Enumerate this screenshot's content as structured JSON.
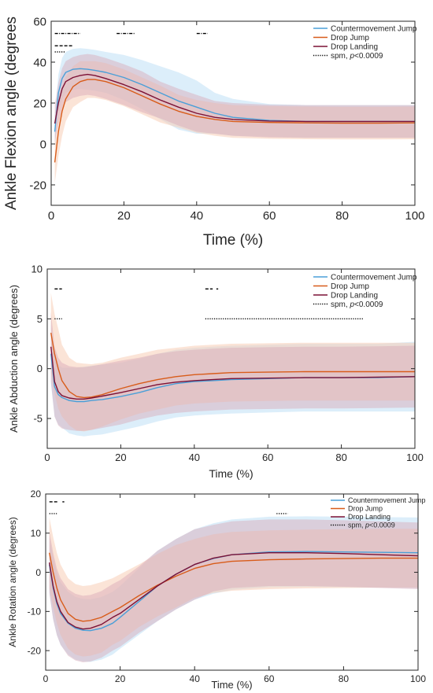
{
  "colors": {
    "cmj": "#4a9fd8",
    "dj": "#d85c1a",
    "dl": "#7c1135",
    "cmj_band": "#bfe0f5",
    "dj_band": "#f7cdb7",
    "dl_band": "#d8a6b6",
    "spm": "#000000"
  },
  "chart_data": [
    {
      "type": "line",
      "xlabel": "Time (%)",
      "ylabel": "Ankle Flexion angle (degrees",
      "xlim": [
        0,
        100
      ],
      "ylim": [
        -30,
        60
      ],
      "xticks": [
        0,
        20,
        40,
        60,
        80,
        100
      ],
      "yticks": [
        -20,
        0,
        20,
        40,
        60
      ],
      "legend_position": "top-right",
      "legend": [
        "Countermovement Jump",
        "Drop Jump",
        "Drop Landing",
        "spm, p<0.0009"
      ],
      "series": [
        {
          "name": "Countermovement Jump",
          "key": "cmj",
          "x": [
            1,
            2,
            3,
            4,
            6,
            8,
            10,
            12,
            15,
            20,
            25,
            30,
            35,
            40,
            45,
            50,
            60,
            70,
            80,
            90,
            100
          ],
          "y": [
            6,
            25,
            32,
            35,
            36.5,
            36.8,
            36.5,
            36,
            35,
            32.5,
            29,
            25,
            21,
            18,
            15,
            13,
            11.5,
            11,
            11,
            11,
            11
          ],
          "sd": [
            8,
            9,
            10,
            10,
            10,
            10,
            10,
            10,
            10,
            11,
            12,
            13,
            14,
            13,
            10,
            9,
            8,
            8,
            8,
            8,
            8
          ]
        },
        {
          "name": "Drop Jump",
          "key": "dj",
          "x": [
            1,
            2,
            3,
            4,
            6,
            8,
            10,
            12,
            15,
            20,
            25,
            30,
            35,
            40,
            45,
            50,
            60,
            70,
            80,
            90,
            100
          ],
          "y": [
            -9,
            6,
            16,
            22,
            28,
            30.5,
            31.5,
            31.5,
            30.5,
            27.5,
            23.5,
            19.5,
            16,
            13.5,
            12,
            11,
            10.5,
            10.3,
            10.2,
            10.2,
            10.3
          ],
          "sd": [
            10,
            12,
            12,
            11,
            10,
            10,
            9,
            9,
            9,
            9,
            9,
            9,
            8,
            8,
            8,
            8,
            8,
            8,
            8,
            8,
            8
          ]
        },
        {
          "name": "Drop Landing",
          "key": "dl",
          "x": [
            1,
            2,
            3,
            4,
            6,
            8,
            10,
            12,
            15,
            20,
            25,
            30,
            35,
            40,
            45,
            50,
            60,
            70,
            80,
            90,
            100
          ],
          "y": [
            10,
            20,
            27,
            30.5,
            32.5,
            33.5,
            34,
            33.5,
            32,
            29,
            25.5,
            21.5,
            18,
            15,
            13,
            12,
            11.2,
            11,
            11,
            11,
            11
          ],
          "sd": [
            9,
            10,
            10,
            10,
            10,
            10,
            10,
            10,
            10,
            10,
            10,
            9,
            9,
            9,
            8,
            8,
            8,
            8,
            8,
            8,
            8
          ]
        }
      ],
      "spm_bars": [
        {
          "y": 54,
          "segments": [
            [
              1,
              8
            ]
          ],
          "style": "dashdot"
        },
        {
          "y": 54,
          "segments": [
            [
              18,
              23
            ]
          ],
          "style": "dashdot"
        },
        {
          "y": 54,
          "segments": [
            [
              40,
              43
            ]
          ],
          "style": "dashdot"
        },
        {
          "y": 48,
          "segments": [
            [
              1,
              6
            ]
          ],
          "style": "dashed"
        },
        {
          "y": 45,
          "segments": [
            [
              1,
              4
            ]
          ],
          "style": "dotted"
        }
      ]
    },
    {
      "type": "line",
      "xlabel": "Time (%)",
      "ylabel": "Ankle Abduction angle (degrees)",
      "xlim": [
        0,
        100
      ],
      "ylim": [
        -8,
        10
      ],
      "xticks": [
        0,
        20,
        40,
        60,
        80,
        100
      ],
      "yticks": [
        -5,
        0,
        5,
        10
      ],
      "legend_position": "top-right",
      "legend": [
        "Countermovement Jump",
        "Drop Jump",
        "Drop Landing",
        "spm, p<0.0009"
      ],
      "series": [
        {
          "name": "Countermovement Jump",
          "key": "cmj",
          "x": [
            1,
            2,
            3,
            4,
            6,
            8,
            10,
            12,
            15,
            20,
            25,
            30,
            35,
            40,
            45,
            50,
            60,
            70,
            80,
            90,
            100
          ],
          "y": [
            1.5,
            -1.8,
            -2.6,
            -2.9,
            -3.2,
            -3.3,
            -3.3,
            -3.2,
            -3.1,
            -2.8,
            -2.4,
            -1.9,
            -1.5,
            -1.3,
            -1.2,
            -1.1,
            -1.0,
            -0.9,
            -0.9,
            -0.9,
            -0.8
          ],
          "sd": [
            3,
            3,
            3,
            3,
            3.3,
            3.4,
            3.5,
            3.5,
            3.5,
            3.4,
            3.4,
            3.4,
            3.4,
            3.4,
            3.4,
            3.4,
            3.4,
            3.4,
            3.4,
            3.4,
            3.5
          ]
        },
        {
          "name": "Drop Jump",
          "key": "dj",
          "x": [
            1,
            2,
            3,
            4,
            6,
            8,
            10,
            12,
            15,
            20,
            25,
            30,
            35,
            40,
            45,
            50,
            60,
            70,
            80,
            90,
            100
          ],
          "y": [
            3.6,
            1.5,
            0,
            -1.2,
            -2.3,
            -2.8,
            -2.9,
            -2.85,
            -2.6,
            -2,
            -1.5,
            -1.1,
            -0.8,
            -0.6,
            -0.5,
            -0.4,
            -0.35,
            -0.3,
            -0.3,
            -0.3,
            -0.3
          ],
          "sd": [
            4,
            4,
            4,
            3.6,
            3.4,
            3.4,
            3.4,
            3.3,
            3.2,
            3.1,
            3,
            3,
            2.9,
            2.9,
            2.9,
            2.9,
            2.9,
            2.9,
            2.9,
            2.9,
            2.9
          ]
        },
        {
          "name": "Drop Landing",
          "key": "dl",
          "x": [
            1,
            2,
            3,
            4,
            6,
            8,
            10,
            12,
            15,
            20,
            25,
            30,
            35,
            40,
            45,
            50,
            60,
            70,
            80,
            90,
            100
          ],
          "y": [
            2.2,
            -1.3,
            -2.3,
            -2.7,
            -2.95,
            -3.05,
            -3.05,
            -2.95,
            -2.75,
            -2.4,
            -2.0,
            -1.6,
            -1.35,
            -1.2,
            -1.1,
            -1.0,
            -0.95,
            -0.9,
            -0.9,
            -0.85,
            -0.8
          ],
          "sd": [
            3.5,
            3.5,
            3.4,
            3.3,
            3.2,
            3.2,
            3.2,
            3.2,
            3.2,
            3.2,
            3.1,
            3.1,
            3.1,
            3.1,
            3.1,
            3.1,
            3.1,
            3.1,
            3.1,
            3.1,
            3.1
          ]
        }
      ],
      "spm_bars": [
        {
          "y": 8,
          "segments": [
            [
              2,
              4
            ]
          ],
          "style": "dashed"
        },
        {
          "y": 8,
          "segments": [
            [
              43,
              45
            ],
            [
              46,
              46.5
            ]
          ],
          "style": "dashed"
        },
        {
          "y": 5,
          "segments": [
            [
              2,
              4
            ],
            [
              43,
              86
            ]
          ],
          "style": "dotted"
        }
      ]
    },
    {
      "type": "line",
      "xlabel": "Time (%)",
      "ylabel": "Ankle Rotation angle (degrees)",
      "xlim": [
        0,
        100
      ],
      "ylim": [
        -25,
        20
      ],
      "xticks": [
        0,
        20,
        40,
        60,
        80,
        100
      ],
      "yticks": [
        -20,
        -10,
        0,
        10,
        20
      ],
      "legend_position": "top-right",
      "legend": [
        "Countermovement Jump",
        "Drop Jump",
        "Drop Landing",
        "spm, p<0.0009"
      ],
      "series": [
        {
          "name": "Countermovement Jump",
          "key": "cmj",
          "x": [
            1,
            2,
            3,
            4,
            6,
            8,
            10,
            12,
            15,
            18,
            20,
            25,
            30,
            35,
            40,
            45,
            50,
            60,
            70,
            80,
            90,
            100
          ],
          "y": [
            2,
            -4,
            -8,
            -10.5,
            -13,
            -14.3,
            -14.8,
            -14.9,
            -14.3,
            -13,
            -11.5,
            -7.5,
            -3.5,
            -0.5,
            2,
            3.5,
            4.5,
            5.2,
            5.3,
            5.2,
            5.1,
            5
          ],
          "sd": [
            7,
            8,
            8,
            8,
            8,
            8,
            8,
            8,
            8,
            8,
            8,
            8.5,
            9,
            9,
            9,
            9,
            9,
            9,
            9,
            9,
            9,
            9
          ]
        },
        {
          "name": "Drop Jump",
          "key": "dj",
          "x": [
            1,
            2,
            3,
            4,
            6,
            8,
            10,
            12,
            15,
            18,
            20,
            25,
            30,
            35,
            40,
            45,
            50,
            60,
            70,
            80,
            90,
            100
          ],
          "y": [
            5,
            0,
            -4,
            -7,
            -10.5,
            -12,
            -12.5,
            -12.3,
            -11.5,
            -10,
            -9,
            -6,
            -3.3,
            -1,
            1,
            2.2,
            2.8,
            3.2,
            3.4,
            3.5,
            3.6,
            3.6
          ],
          "sd": [
            9,
            9,
            9,
            9,
            9,
            9,
            9,
            9,
            9,
            8.5,
            8.5,
            8,
            8,
            8,
            7.5,
            7.5,
            7.5,
            7.5,
            7.5,
            7.5,
            7.5,
            7.5
          ]
        },
        {
          "name": "Drop Landing",
          "key": "dl",
          "x": [
            1,
            2,
            3,
            4,
            6,
            8,
            10,
            12,
            15,
            18,
            20,
            25,
            30,
            35,
            40,
            45,
            50,
            60,
            70,
            80,
            90,
            100
          ],
          "y": [
            2.5,
            -3.5,
            -7.5,
            -10,
            -12.8,
            -14,
            -14.5,
            -14.3,
            -13.3,
            -11.5,
            -10.5,
            -7,
            -3.5,
            -0.5,
            2,
            3.6,
            4.5,
            5,
            5,
            4.8,
            4.5,
            4.2
          ],
          "sd": [
            8,
            8.5,
            8.5,
            8.5,
            8.5,
            8.5,
            8.5,
            8.5,
            8.5,
            8.5,
            8.5,
            8.5,
            9,
            9,
            9,
            8.5,
            8.5,
            8.5,
            8.5,
            8.5,
            8.5,
            8.5
          ]
        }
      ],
      "spm_bars": [
        {
          "y": 18,
          "segments": [
            [
              1,
              3.5
            ],
            [
              4.5,
              5
            ]
          ],
          "style": "dashed"
        },
        {
          "y": 15,
          "segments": [
            [
              1,
              3
            ]
          ],
          "style": "dotted"
        },
        {
          "y": 15,
          "segments": [
            [
              62,
              65
            ]
          ],
          "style": "dotted"
        }
      ]
    }
  ]
}
